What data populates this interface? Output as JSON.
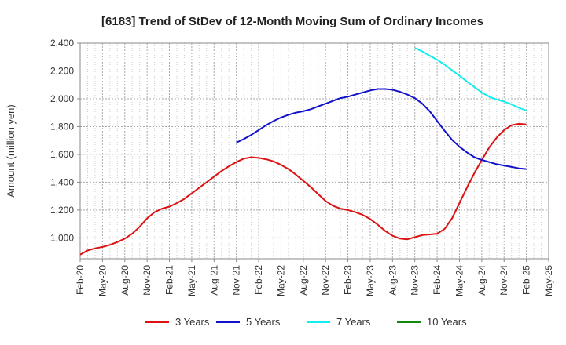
{
  "chart_data": {
    "type": "line",
    "title": "[6183]  Trend of StDev of 12-Month Moving Sum of Ordinary Incomes",
    "xlabel": "",
    "ylabel": "Amount (million yen)",
    "ylim": [
      850,
      2400
    ],
    "yticks": [
      1000,
      1200,
      1400,
      1600,
      1800,
      2000,
      2200,
      2400
    ],
    "ytick_labels": [
      "1,000",
      "1,200",
      "1,400",
      "1,600",
      "1,800",
      "2,000",
      "2,200",
      "2,400"
    ],
    "xticks": [
      "Feb-20",
      "May-20",
      "Aug-20",
      "Nov-20",
      "Feb-21",
      "May-21",
      "Aug-21",
      "Nov-21",
      "Feb-22",
      "May-22",
      "Aug-22",
      "Nov-22",
      "Feb-23",
      "May-23",
      "Aug-23",
      "Nov-23",
      "Feb-24",
      "May-24",
      "Aug-24",
      "Nov-24",
      "Feb-25",
      "May-25"
    ],
    "grid": true,
    "legend_position": "bottom",
    "series": [
      {
        "name": "3 Years",
        "color": "#dd1111",
        "x": [
          "Feb-20",
          "Mar-20",
          "Apr-20",
          "May-20",
          "Jun-20",
          "Jul-20",
          "Aug-20",
          "Sep-20",
          "Oct-20",
          "Nov-20",
          "Dec-20",
          "Jan-21",
          "Feb-21",
          "Mar-21",
          "Apr-21",
          "May-21",
          "Jun-21",
          "Jul-21",
          "Aug-21",
          "Sep-21",
          "Oct-21",
          "Nov-21",
          "Dec-21",
          "Jan-22",
          "Feb-22",
          "Mar-22",
          "Apr-22",
          "May-22",
          "Jun-22",
          "Jul-22",
          "Aug-22",
          "Sep-22",
          "Oct-22",
          "Nov-22",
          "Dec-22",
          "Jan-23",
          "Feb-23",
          "Mar-23",
          "Apr-23",
          "May-23",
          "Jun-23",
          "Jul-23",
          "Aug-23",
          "Sep-23",
          "Oct-23",
          "Nov-23",
          "Dec-23",
          "Jan-24",
          "Feb-24",
          "Mar-24",
          "Apr-24",
          "May-24",
          "Jun-24",
          "Jul-24",
          "Aug-24",
          "Sep-24",
          "Oct-24",
          "Nov-24",
          "Dec-24",
          "Jan-25",
          "Feb-25"
        ],
        "values": [
          880,
          910,
          925,
          935,
          950,
          970,
          995,
          1030,
          1080,
          1140,
          1185,
          1210,
          1225,
          1250,
          1280,
          1320,
          1360,
          1400,
          1440,
          1480,
          1515,
          1545,
          1570,
          1580,
          1575,
          1565,
          1550,
          1525,
          1495,
          1455,
          1410,
          1365,
          1315,
          1265,
          1230,
          1210,
          1200,
          1185,
          1165,
          1135,
          1095,
          1050,
          1015,
          995,
          990,
          1005,
          1020,
          1025,
          1030,
          1065,
          1140,
          1250,
          1360,
          1465,
          1560,
          1650,
          1720,
          1775,
          1810,
          1820,
          1815
        ]
      },
      {
        "name": "5 Years",
        "color": "#1111cc",
        "x": [
          "Nov-21",
          "Dec-21",
          "Jan-22",
          "Feb-22",
          "Mar-22",
          "Apr-22",
          "May-22",
          "Jun-22",
          "Jul-22",
          "Aug-22",
          "Sep-22",
          "Oct-22",
          "Nov-22",
          "Dec-22",
          "Jan-23",
          "Feb-23",
          "Mar-23",
          "Apr-23",
          "May-23",
          "Jun-23",
          "Jul-23",
          "Aug-23",
          "Sep-23",
          "Oct-23",
          "Nov-23",
          "Dec-23",
          "Jan-24",
          "Feb-24",
          "Mar-24",
          "Apr-24",
          "May-24",
          "Jun-24",
          "Jul-24",
          "Aug-24",
          "Sep-24",
          "Oct-24",
          "Nov-24",
          "Dec-24",
          "Jan-25",
          "Feb-25"
        ],
        "values": [
          1685,
          1710,
          1740,
          1775,
          1810,
          1840,
          1865,
          1885,
          1900,
          1910,
          1925,
          1945,
          1965,
          1985,
          2005,
          2015,
          2030,
          2045,
          2060,
          2070,
          2070,
          2065,
          2050,
          2030,
          2005,
          1965,
          1910,
          1840,
          1770,
          1705,
          1655,
          1615,
          1580,
          1560,
          1545,
          1530,
          1520,
          1510,
          1500,
          1495
        ]
      },
      {
        "name": "7 Years",
        "color": "#11eeee",
        "x": [
          "Nov-23",
          "Dec-23",
          "Jan-24",
          "Feb-24",
          "Mar-24",
          "Apr-24",
          "May-24",
          "Jun-24",
          "Jul-24",
          "Aug-24",
          "Sep-24",
          "Oct-24",
          "Nov-24",
          "Dec-24",
          "Jan-25",
          "Feb-25"
        ],
        "values": [
          2365,
          2340,
          2310,
          2280,
          2245,
          2205,
          2165,
          2125,
          2085,
          2045,
          2015,
          1995,
          1980,
          1960,
          1935,
          1915
        ]
      },
      {
        "name": "10 Years",
        "color": "#118811",
        "x": [],
        "values": []
      }
    ]
  }
}
